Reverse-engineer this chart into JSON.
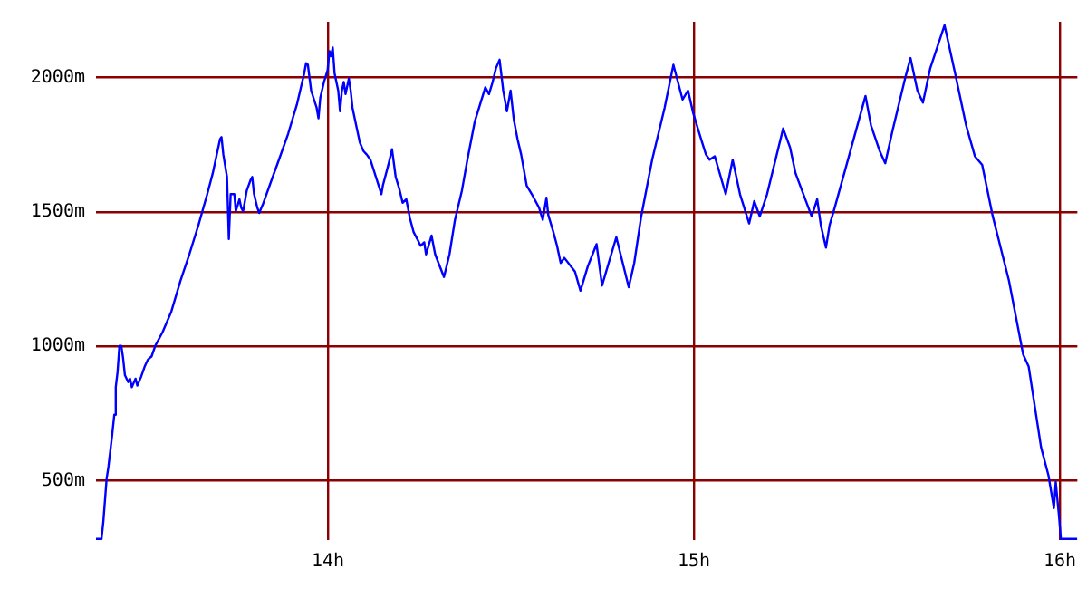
{
  "chart_data": {
    "type": "line",
    "color": "#0000ff",
    "marker": "none",
    "line_style": "solid",
    "grid": true,
    "legend": false,
    "x": [
      13.366,
      13.381,
      13.386,
      13.395,
      13.4,
      13.41,
      13.416,
      13.42,
      13.425,
      13.43,
      13.435,
      13.44,
      13.445,
      13.454,
      13.459,
      13.464,
      13.474,
      13.479,
      13.489,
      13.499,
      13.508,
      13.518,
      13.528,
      13.548,
      13.572,
      13.597,
      13.621,
      13.646,
      13.67,
      13.685,
      13.695,
      13.705,
      13.709,
      13.714,
      13.724,
      13.729,
      13.734,
      13.744,
      13.748,
      13.758,
      13.763,
      13.768,
      13.778,
      13.788,
      13.793,
      13.798,
      13.807,
      13.812,
      13.822,
      13.842,
      13.866,
      13.891,
      13.915,
      13.935,
      13.94,
      13.945,
      13.954,
      13.969,
      13.974,
      13.979,
      13.989,
      13.999,
      14.004,
      14.008,
      14.013,
      14.018,
      14.028,
      14.033,
      14.038,
      14.043,
      14.048,
      14.057,
      14.062,
      14.067,
      14.077,
      14.087,
      14.097,
      14.106,
      14.116,
      14.131,
      14.146,
      14.15,
      14.165,
      14.175,
      14.185,
      14.195,
      14.204,
      14.214,
      14.224,
      14.234,
      14.244,
      14.253,
      14.263,
      14.268,
      14.283,
      14.293,
      14.302,
      14.317,
      14.332,
      14.347,
      14.366,
      14.381,
      14.401,
      14.43,
      14.44,
      14.45,
      14.459,
      14.469,
      14.479,
      14.489,
      14.499,
      14.508,
      14.518,
      14.528,
      14.543,
      14.557,
      14.577,
      14.587,
      14.597,
      14.602,
      14.616,
      14.626,
      14.636,
      14.646,
      14.675,
      14.69,
      14.71,
      14.734,
      14.749,
      14.788,
      14.822,
      14.837,
      14.856,
      14.886,
      14.92,
      14.944,
      14.969,
      14.984,
      14.998,
      15.018,
      15.033,
      15.043,
      15.057,
      15.087,
      15.106,
      15.126,
      15.151,
      15.165,
      15.18,
      15.2,
      15.244,
      15.263,
      15.278,
      15.322,
      15.337,
      15.347,
      15.361,
      15.371,
      15.386,
      15.425,
      15.469,
      15.484,
      15.508,
      15.523,
      15.543,
      15.577,
      15.592,
      15.611,
      15.626,
      15.646,
      15.685,
      15.714,
      15.744,
      15.768,
      15.788,
      15.817,
      15.861,
      15.9,
      15.915,
      15.949,
      15.969,
      15.984,
      15.989,
      15.998,
      16.003,
      16.048
    ],
    "values": [
      284,
      284,
      348,
      508,
      553,
      669,
      746,
      848,
      906,
      1002,
      1002,
      957,
      893,
      867,
      880,
      848,
      880,
      854,
      886,
      925,
      951,
      963,
      1002,
      1053,
      1130,
      1245,
      1342,
      1451,
      1566,
      1643,
      1707,
      1771,
      1778,
      1713,
      1630,
      1399,
      1566,
      1566,
      1502,
      1547,
      1515,
      1502,
      1579,
      1617,
      1630,
      1566,
      1515,
      1496,
      1528,
      1604,
      1694,
      1790,
      1899,
      2015,
      2053,
      2047,
      1951,
      1887,
      1848,
      1925,
      1983,
      2027,
      2098,
      2079,
      2111,
      2015,
      1951,
      1874,
      1951,
      1983,
      1938,
      1996,
      1951,
      1887,
      1822,
      1758,
      1726,
      1713,
      1694,
      1630,
      1566,
      1598,
      1675,
      1733,
      1630,
      1585,
      1534,
      1547,
      1476,
      1425,
      1399,
      1374,
      1387,
      1342,
      1412,
      1342,
      1310,
      1258,
      1342,
      1470,
      1579,
      1694,
      1835,
      1963,
      1938,
      1983,
      2034,
      2066,
      1951,
      1874,
      1951,
      1842,
      1771,
      1713,
      1598,
      1566,
      1515,
      1470,
      1553,
      1489,
      1425,
      1374,
      1310,
      1329,
      1278,
      1207,
      1297,
      1380,
      1226,
      1406,
      1220,
      1310,
      1483,
      1694,
      1887,
      2047,
      1918,
      1951,
      1868,
      1778,
      1713,
      1694,
      1707,
      1566,
      1694,
      1566,
      1457,
      1540,
      1483,
      1566,
      1810,
      1739,
      1643,
      1483,
      1547,
      1451,
      1367,
      1451,
      1521,
      1713,
      1931,
      1822,
      1726,
      1681,
      1803,
      1995,
      2072,
      1951,
      1906,
      2034,
      2194,
      2015,
      1822,
      1707,
      1675,
      1483,
      1245,
      970,
      925,
      624,
      521,
      399,
      496,
      367,
      284,
      284
    ],
    "xlim": [
      13.366,
      16.048
    ],
    "ylim": [
      280,
      2207
    ],
    "xticks": [
      {
        "value": 14,
        "label": "14h"
      },
      {
        "value": 15,
        "label": "15h"
      },
      {
        "value": 16,
        "label": "16h"
      }
    ],
    "yticks": [
      {
        "value": 500,
        "label": "500m"
      },
      {
        "value": 1000,
        "label": "1000m"
      },
      {
        "value": 1500,
        "label": "1500m"
      },
      {
        "value": 2000,
        "label": "2000m"
      }
    ]
  }
}
